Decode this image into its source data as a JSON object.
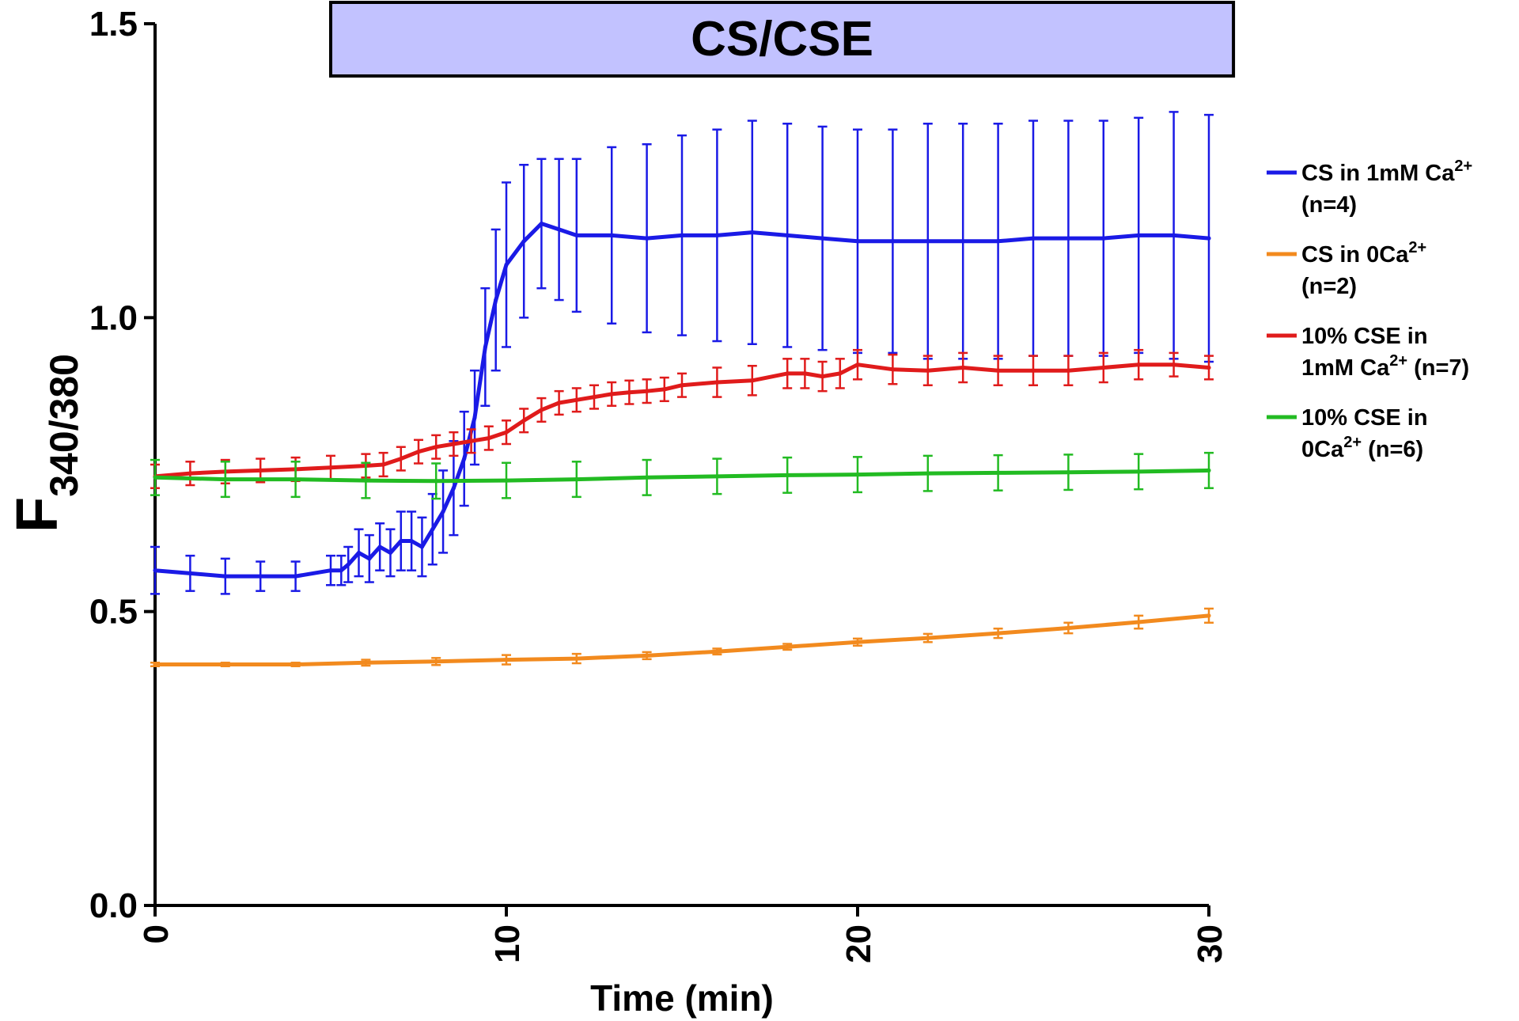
{
  "chart_data": {
    "type": "line",
    "banner": "CS/CSE",
    "xlabel": "Time (min)",
    "ylabel_main": "F",
    "ylabel_sub": "340/380",
    "xlim": [
      0,
      30
    ],
    "ylim": [
      0,
      1.5
    ],
    "x_ticks": [
      "0",
      "10",
      "20",
      "30"
    ],
    "y_ticks": [
      "0.0",
      "0.5",
      "1.0",
      "1.5"
    ],
    "banner_span": [
      5,
      30.7
    ],
    "legend_position": "right",
    "series": [
      {
        "key": "blue",
        "legend_line1": "CS in 1mM Ca",
        "legend_sup1": "2+",
        "legend_line2": "(n=4)",
        "legend_sup2": "",
        "legend_tail2": "",
        "color": "#1a1ae6",
        "x": [
          0,
          1,
          2,
          3,
          4,
          5,
          5.3,
          5.5,
          5.8,
          6.1,
          6.4,
          6.7,
          7,
          7.3,
          7.6,
          7.9,
          8.2,
          8.5,
          8.8,
          9.1,
          9.4,
          9.7,
          10,
          10.5,
          11,
          11.5,
          12,
          13,
          14,
          15,
          16,
          17,
          18,
          19,
          20,
          21,
          22,
          23,
          24,
          25,
          26,
          27,
          28,
          29,
          30
        ],
        "y": [
          0.57,
          0.565,
          0.56,
          0.56,
          0.56,
          0.57,
          0.57,
          0.58,
          0.6,
          0.59,
          0.61,
          0.6,
          0.62,
          0.62,
          0.61,
          0.64,
          0.67,
          0.71,
          0.76,
          0.83,
          0.95,
          1.03,
          1.09,
          1.13,
          1.16,
          1.15,
          1.14,
          1.14,
          1.135,
          1.14,
          1.14,
          1.145,
          1.14,
          1.135,
          1.13,
          1.13,
          1.13,
          1.13,
          1.13,
          1.135,
          1.135,
          1.135,
          1.14,
          1.14,
          1.135
        ],
        "err": [
          0.04,
          0.03,
          0.03,
          0.025,
          0.025,
          0.025,
          0.025,
          0.03,
          0.04,
          0.04,
          0.04,
          0.04,
          0.05,
          0.05,
          0.05,
          0.06,
          0.07,
          0.08,
          0.08,
          0.08,
          0.1,
          0.12,
          0.14,
          0.13,
          0.11,
          0.12,
          0.13,
          0.15,
          0.16,
          0.17,
          0.18,
          0.19,
          0.19,
          0.19,
          0.19,
          0.19,
          0.2,
          0.2,
          0.2,
          0.2,
          0.2,
          0.2,
          0.2,
          0.21,
          0.21
        ]
      },
      {
        "key": "orange",
        "legend_line1": "CS in 0Ca",
        "legend_sup1": "2+",
        "legend_line2": "(n=2)",
        "legend_sup2": "",
        "legend_tail2": "",
        "color": "#f28a1e",
        "x": [
          0,
          2,
          4,
          6,
          8,
          10,
          12,
          14,
          16,
          18,
          20,
          22,
          24,
          26,
          28,
          30
        ],
        "y": [
          0.41,
          0.41,
          0.41,
          0.413,
          0.415,
          0.418,
          0.42,
          0.425,
          0.432,
          0.44,
          0.448,
          0.455,
          0.463,
          0.472,
          0.482,
          0.493
        ],
        "err": [
          0.003,
          0.003,
          0.003,
          0.005,
          0.006,
          0.008,
          0.008,
          0.006,
          0.005,
          0.005,
          0.006,
          0.007,
          0.008,
          0.009,
          0.011,
          0.012
        ]
      },
      {
        "key": "red",
        "legend_line1": "10% CSE in",
        "legend_sup1": "",
        "legend_line2": "1mM Ca",
        "legend_sup2": "2+",
        "legend_tail2": " (n=7)",
        "color": "#e01b1b",
        "x": [
          0,
          1,
          2,
          3,
          4,
          5,
          6,
          6.5,
          7,
          7.5,
          8,
          8.5,
          9,
          9.5,
          10,
          10.5,
          11,
          11.5,
          12,
          12.5,
          13,
          13.5,
          14,
          14.5,
          15,
          16,
          17,
          18,
          18.5,
          19,
          19.5,
          20,
          21,
          22,
          23,
          24,
          25,
          26,
          27,
          28,
          29,
          30
        ],
        "y": [
          0.73,
          0.735,
          0.738,
          0.74,
          0.742,
          0.745,
          0.748,
          0.75,
          0.76,
          0.772,
          0.78,
          0.785,
          0.79,
          0.795,
          0.805,
          0.825,
          0.843,
          0.855,
          0.86,
          0.865,
          0.87,
          0.873,
          0.875,
          0.878,
          0.885,
          0.89,
          0.893,
          0.905,
          0.905,
          0.9,
          0.905,
          0.92,
          0.912,
          0.91,
          0.915,
          0.91,
          0.91,
          0.91,
          0.915,
          0.92,
          0.92,
          0.915
        ],
        "err": [
          0.02,
          0.02,
          0.02,
          0.02,
          0.02,
          0.02,
          0.02,
          0.02,
          0.02,
          0.02,
          0.02,
          0.02,
          0.02,
          0.02,
          0.02,
          0.02,
          0.02,
          0.02,
          0.02,
          0.02,
          0.02,
          0.02,
          0.02,
          0.02,
          0.02,
          0.025,
          0.025,
          0.025,
          0.025,
          0.025,
          0.025,
          0.025,
          0.025,
          0.025,
          0.025,
          0.025,
          0.025,
          0.025,
          0.025,
          0.025,
          0.02,
          0.02
        ]
      },
      {
        "key": "green",
        "legend_line1": "10% CSE in",
        "legend_sup1": "",
        "legend_line2": "0Ca",
        "legend_sup2": "2+",
        "legend_tail2": " (n=6)",
        "color": "#22bb22",
        "x": [
          0,
          2,
          4,
          6,
          8,
          10,
          12,
          14,
          16,
          18,
          20,
          22,
          24,
          26,
          28,
          30
        ],
        "y": [
          0.728,
          0.725,
          0.725,
          0.723,
          0.722,
          0.723,
          0.725,
          0.728,
          0.73,
          0.732,
          0.733,
          0.735,
          0.736,
          0.737,
          0.738,
          0.74
        ],
        "err": [
          0.03,
          0.03,
          0.03,
          0.03,
          0.03,
          0.03,
          0.03,
          0.03,
          0.03,
          0.03,
          0.03,
          0.03,
          0.03,
          0.03,
          0.03,
          0.03
        ]
      }
    ]
  }
}
